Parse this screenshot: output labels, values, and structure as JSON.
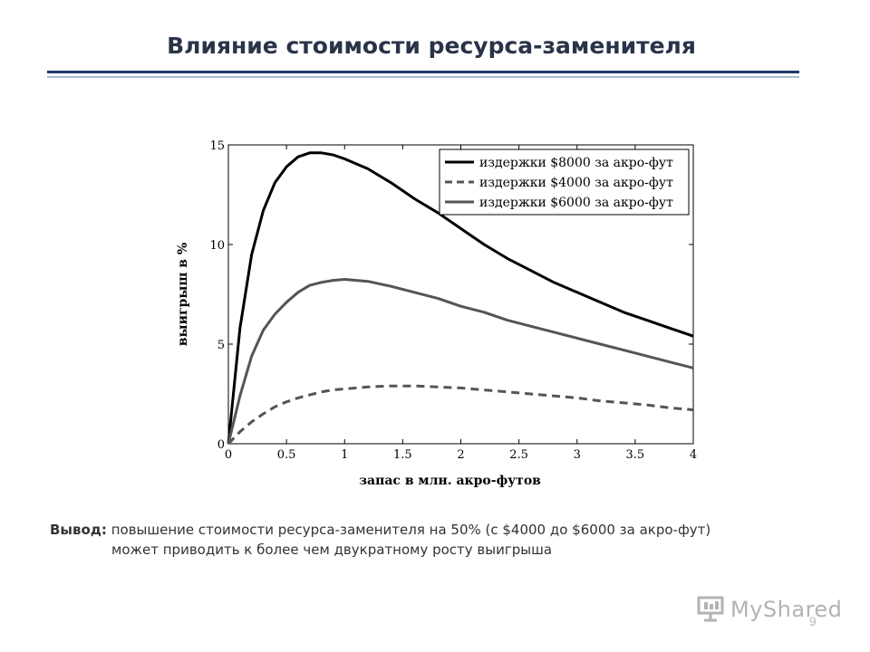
{
  "slide": {
    "title": "Влияние стоимости ресурса-заменителя",
    "conclusion_label": "Вывод:",
    "conclusion_line1": "повышение стоимости ресурса-заменителя на 50%  (с $4000 до $6000 за акро-фут)",
    "conclusion_line2": "может приводить к более чем двукратному росту выигрыша",
    "page_number": "9",
    "watermark": "MyShared"
  },
  "chart_data": {
    "type": "line",
    "title": "",
    "xlabel": "запас в млн. акро-футов",
    "ylabel": "выигрыш в %",
    "xlim": [
      0,
      4
    ],
    "ylim": [
      0,
      15
    ],
    "xticks": [
      "0",
      "0.5",
      "1",
      "1.5",
      "2",
      "2.5",
      "3",
      "3.5",
      "4"
    ],
    "yticks": [
      "0",
      "5",
      "10",
      "15"
    ],
    "legend_position": "top-right",
    "grid": false,
    "x": [
      0,
      0.1,
      0.2,
      0.3,
      0.4,
      0.5,
      0.6,
      0.7,
      0.8,
      0.9,
      1.0,
      1.2,
      1.4,
      1.6,
      1.8,
      2.0,
      2.2,
      2.4,
      2.6,
      2.8,
      3.0,
      3.2,
      3.4,
      3.6,
      3.8,
      4.0
    ],
    "series": [
      {
        "name": "издержки $8000 за акро-фут",
        "style": "solid-thick",
        "color": "#000000",
        "values": [
          0,
          5.8,
          9.5,
          11.7,
          13.1,
          13.9,
          14.4,
          14.6,
          14.6,
          14.5,
          14.3,
          13.8,
          13.1,
          12.3,
          11.6,
          10.8,
          10.0,
          9.3,
          8.7,
          8.1,
          7.6,
          7.1,
          6.6,
          6.2,
          5.8,
          5.4
        ]
      },
      {
        "name": "издержки $4000 за акро-фут",
        "style": "dashed",
        "color": "#555555",
        "values": [
          0,
          0.6,
          1.1,
          1.5,
          1.85,
          2.1,
          2.3,
          2.45,
          2.6,
          2.7,
          2.75,
          2.85,
          2.9,
          2.9,
          2.85,
          2.8,
          2.7,
          2.6,
          2.5,
          2.4,
          2.3,
          2.15,
          2.05,
          1.95,
          1.8,
          1.7
        ]
      },
      {
        "name": "издержки $6000 за акро-фут",
        "style": "solid",
        "color": "#555555",
        "values": [
          0,
          2.4,
          4.4,
          5.7,
          6.5,
          7.1,
          7.6,
          7.95,
          8.1,
          8.2,
          8.25,
          8.15,
          7.9,
          7.6,
          7.3,
          6.9,
          6.6,
          6.2,
          5.9,
          5.6,
          5.3,
          5.0,
          4.7,
          4.4,
          4.1,
          3.8
        ]
      }
    ]
  }
}
